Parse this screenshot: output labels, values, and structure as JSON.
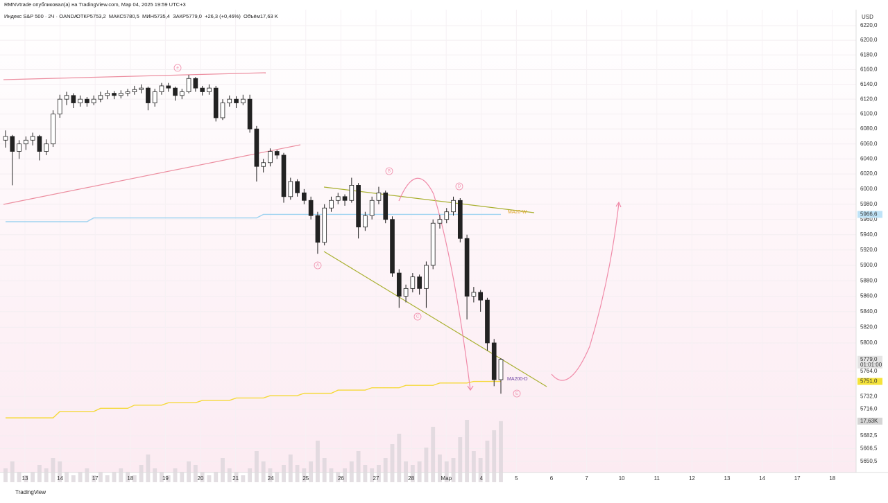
{
  "header": {
    "publisher": "RMNVtrade опубликовал(а) на TradingView.com, Мар 04, 2025 19:59 UTC+3",
    "symbol": "Индекс S&P 500 · 2Ч · OANDA",
    "ohlc": "ОТКР5753,2  МАКС5780,5  МИН5735,4  ЗАКР5779,0  +26,3 (+0,46%)  Объём17,63 K"
  },
  "footer": "TradingView",
  "chart_data": {
    "type": "candlestick",
    "currency": "USD",
    "log_scale": true,
    "ylim": [
      5650.5,
      6220
    ],
    "yticks": [
      {
        "value": 6220,
        "label": "6220,0"
      },
      {
        "value": 6200,
        "label": "6200,0"
      },
      {
        "value": 6180,
        "label": "6180,0"
      },
      {
        "value": 6160,
        "label": "6160,0"
      },
      {
        "value": 6140,
        "label": "6140,0"
      },
      {
        "value": 6120,
        "label": "6120,0"
      },
      {
        "value": 6100,
        "label": "6100,0"
      },
      {
        "value": 6080,
        "label": "6080,0"
      },
      {
        "value": 6060,
        "label": "6060,0"
      },
      {
        "value": 6040,
        "label": "6040,0"
      },
      {
        "value": 6020,
        "label": "6020,0"
      },
      {
        "value": 6000,
        "label": "6000,0"
      },
      {
        "value": 5980,
        "label": "5980,0"
      },
      {
        "value": 5960,
        "label": "5960,0"
      },
      {
        "value": 5940,
        "label": "5940,0"
      },
      {
        "value": 5920,
        "label": "5920,0"
      },
      {
        "value": 5900,
        "label": "5900,0"
      },
      {
        "value": 5880,
        "label": "5880,0"
      },
      {
        "value": 5860,
        "label": "5860,0"
      },
      {
        "value": 5840,
        "label": "5840,0"
      },
      {
        "value": 5820,
        "label": "5820,0"
      },
      {
        "value": 5800,
        "label": "5800,0"
      },
      {
        "value": 5764,
        "label": "5764,0"
      },
      {
        "value": 5732,
        "label": "5732,0"
      },
      {
        "value": 5716,
        "label": "5716,0"
      },
      {
        "value": 5682.5,
        "label": "5682,5"
      },
      {
        "value": 5666.5,
        "label": "5666,5"
      },
      {
        "value": 5650.5,
        "label": "5650,5"
      }
    ],
    "date_labels": [
      "13",
      "14",
      "17",
      "18",
      "19",
      "20",
      "21",
      "24",
      "25",
      "26",
      "27",
      "28",
      "Мар",
      "4",
      "5",
      "6",
      "7",
      "10",
      "11",
      "12",
      "13",
      "14",
      "17",
      "18"
    ],
    "candles": [
      [
        6065,
        6078,
        6055,
        6070
      ],
      [
        6070,
        6072,
        6005,
        6050
      ],
      [
        6050,
        6065,
        6040,
        6060
      ],
      [
        6060,
        6070,
        6052,
        6065
      ],
      [
        6065,
        6075,
        6058,
        6070
      ],
      [
        6070,
        6072,
        6038,
        6050
      ],
      [
        6050,
        6066,
        6045,
        6060
      ],
      [
        6060,
        6105,
        6056,
        6100
      ],
      [
        6100,
        6126,
        6095,
        6120
      ],
      [
        6120,
        6130,
        6112,
        6125
      ],
      [
        6125,
        6128,
        6108,
        6115
      ],
      [
        6115,
        6125,
        6110,
        6120
      ],
      [
        6120,
        6123,
        6110,
        6115
      ],
      [
        6115,
        6125,
        6112,
        6120
      ],
      [
        6120,
        6130,
        6116,
        6125
      ],
      [
        6125,
        6132,
        6120,
        6128
      ],
      [
        6128,
        6131,
        6120,
        6125
      ],
      [
        6125,
        6132,
        6121,
        6128
      ],
      [
        6128,
        6134,
        6124,
        6130
      ],
      [
        6130,
        6138,
        6126,
        6133
      ],
      [
        6133,
        6140,
        6128,
        6135
      ],
      [
        6135,
        6137,
        6105,
        6115
      ],
      [
        6115,
        6134,
        6110,
        6130
      ],
      [
        6130,
        6142,
        6126,
        6138
      ],
      [
        6138,
        6142,
        6130,
        6135
      ],
      [
        6135,
        6137,
        6118,
        6125
      ],
      [
        6125,
        6134,
        6120,
        6130
      ],
      [
        6130,
        6153,
        6128,
        6148
      ],
      [
        6148,
        6150,
        6130,
        6135
      ],
      [
        6135,
        6138,
        6125,
        6130
      ],
      [
        6130,
        6140,
        6126,
        6135
      ],
      [
        6135,
        6138,
        6090,
        6095
      ],
      [
        6095,
        6120,
        6092,
        6115
      ],
      [
        6115,
        6125,
        6110,
        6120
      ],
      [
        6120,
        6124,
        6108,
        6115
      ],
      [
        6115,
        6126,
        6112,
        6120
      ],
      [
        6120,
        6126,
        6075,
        6080
      ],
      [
        6080,
        6084,
        6010,
        6030
      ],
      [
        6030,
        6040,
        6022,
        6035
      ],
      [
        6035,
        6054,
        6030,
        6050
      ],
      [
        6050,
        6052,
        6040,
        6045
      ],
      [
        6045,
        6048,
        5982,
        5990
      ],
      [
        5990,
        6015,
        5986,
        6010
      ],
      [
        6010,
        6013,
        5990,
        5995
      ],
      [
        5995,
        6000,
        5980,
        5985
      ],
      [
        5985,
        5990,
        5960,
        5965
      ],
      [
        5965,
        5970,
        5915,
        5930
      ],
      [
        5930,
        5980,
        5926,
        5975
      ],
      [
        5975,
        5990,
        5970,
        5985
      ],
      [
        5985,
        5995,
        5980,
        5990
      ],
      [
        5990,
        5993,
        5978,
        5985
      ],
      [
        5985,
        6015,
        5982,
        6005
      ],
      [
        6005,
        6008,
        5935,
        5950
      ],
      [
        5950,
        5970,
        5945,
        5965
      ],
      [
        5965,
        5990,
        5960,
        5985
      ],
      [
        5985,
        6003,
        5980,
        5995
      ],
      [
        5995,
        5998,
        5955,
        5960
      ],
      [
        5960,
        5964,
        5885,
        5890
      ],
      [
        5890,
        5895,
        5845,
        5860
      ],
      [
        5860,
        5875,
        5852,
        5870
      ],
      [
        5870,
        5890,
        5865,
        5885
      ],
      [
        5885,
        5888,
        5862,
        5870
      ],
      [
        5870,
        5905,
        5845,
        5900
      ],
      [
        5900,
        5960,
        5895,
        5955
      ],
      [
        5955,
        5966,
        5948,
        5960
      ],
      [
        5960,
        5975,
        5955,
        5970
      ],
      [
        5970,
        5990,
        5965,
        5985
      ],
      [
        5985,
        5988,
        5930,
        5935
      ],
      [
        5935,
        5940,
        5830,
        5860
      ],
      [
        5860,
        5872,
        5852,
        5865
      ],
      [
        5865,
        5868,
        5840,
        5855
      ],
      [
        5855,
        5858,
        5790,
        5800
      ],
      [
        5800,
        5805,
        5745,
        5753.2
      ],
      [
        5753.2,
        5780.5,
        5735.4,
        5779.0
      ]
    ],
    "volume": {
      "ylim": [
        0,
        20
      ],
      "values": [
        4,
        6,
        3,
        2,
        3,
        5,
        4,
        7,
        6,
        3,
        2,
        3,
        4,
        2,
        3,
        2,
        3,
        4,
        3,
        2,
        5,
        8,
        4,
        3,
        2,
        4,
        3,
        6,
        5,
        3,
        2,
        3,
        7,
        4,
        3,
        2,
        4,
        9,
        6,
        4,
        3,
        5,
        8,
        5,
        4,
        6,
        12,
        7,
        4,
        3,
        4,
        6,
        9,
        5,
        4,
        5,
        7,
        11,
        14,
        6,
        5,
        6,
        10,
        16,
        8,
        6,
        7,
        13,
        18,
        9,
        7,
        12,
        15,
        17.63
      ],
      "value_labels": {
        "73": "17,63K"
      }
    },
    "series": [
      {
        "name": "MA20-W",
        "color": "#9fd3f0",
        "values": [
          5957,
          5957,
          5957,
          5957,
          5957,
          5957,
          5957,
          5957,
          5957,
          5957,
          5957,
          5957,
          5957,
          5962,
          5962,
          5962,
          5962,
          5962,
          5962,
          5962,
          5962,
          5962,
          5962,
          5962,
          5962,
          5962,
          5962,
          5962,
          5962,
          5962,
          5962,
          5962,
          5962,
          5962,
          5962,
          5962,
          5962,
          5962,
          5966.6,
          5966.6,
          5966.6,
          5966.6,
          5966.6,
          5966.6,
          5966.6,
          5966.6,
          5966.6,
          5966.6,
          5966.6,
          5966.6,
          5966.6,
          5966.6,
          5966.6,
          5966.6,
          5966.6,
          5966.6,
          5966.6,
          5966.6,
          5966.6,
          5966.6,
          5966.6,
          5966.6,
          5966.6,
          5966.6,
          5966.6,
          5966.6,
          5966.6,
          5966.6,
          5966.6,
          5966.6,
          5966.6,
          5966.6,
          5966.6,
          5966.6
        ]
      },
      {
        "name": "MA200-D",
        "color": "#f5d93a",
        "values": [
          5705,
          5705,
          5705,
          5705,
          5705,
          5705,
          5705,
          5705,
          5713,
          5713,
          5713,
          5713,
          5713,
          5713,
          5717,
          5717,
          5717,
          5717,
          5717,
          5721,
          5721,
          5721,
          5721,
          5721,
          5724,
          5724,
          5724,
          5724,
          5724,
          5727,
          5727,
          5727,
          5727,
          5727,
          5730,
          5730,
          5730,
          5730,
          5730,
          5733,
          5733,
          5733,
          5733,
          5733,
          5736,
          5736,
          5736,
          5736,
          5736,
          5740,
          5740,
          5740,
          5740,
          5740,
          5743,
          5743,
          5743,
          5743,
          5743,
          5746,
          5746,
          5746,
          5746,
          5746,
          5749,
          5749,
          5749,
          5749,
          5749,
          5751,
          5751,
          5751,
          5751,
          5751
        ]
      }
    ],
    "price_tags": [
      {
        "value": 5966.6,
        "label": "5966,6",
        "color": "#bfe3f7"
      },
      {
        "value": 5779.0,
        "label": "5779,0",
        "sub": "01:01:00",
        "color": "#e4e4e4"
      },
      {
        "value": 5751.0,
        "label": "5751,0",
        "color": "#f5e33a"
      }
    ],
    "wave_labels": [
      "e",
      "B",
      "D",
      "A",
      "C",
      "E"
    ]
  }
}
